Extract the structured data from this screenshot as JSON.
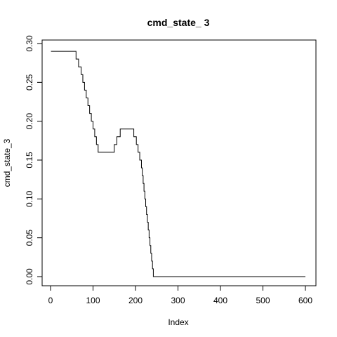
{
  "chart_data": {
    "type": "line",
    "title": "cmd_state_ 3",
    "xlabel": "Index",
    "ylabel": "cmd_state_3",
    "xlim": [
      0,
      600
    ],
    "ylim": [
      0,
      0.3
    ],
    "x_ticks": [
      0,
      100,
      200,
      300,
      400,
      500,
      600
    ],
    "x_tick_labels": [
      "0",
      "100",
      "200",
      "300",
      "400",
      "500",
      "600"
    ],
    "y_ticks": [
      0.0,
      0.05,
      0.1,
      0.15,
      0.2,
      0.25,
      0.3
    ],
    "y_tick_labels": [
      "0.00",
      "0.05",
      "0.10",
      "0.15",
      "0.20",
      "0.25",
      "0.30"
    ],
    "grid": false,
    "series": [
      {
        "step": true,
        "x": [
          1,
          60,
          66,
          72,
          76,
          80,
          84,
          88,
          92,
          96,
          100,
          104,
          108,
          112,
          118,
          124,
          150,
          156,
          164,
          174,
          196,
          202,
          206,
          210,
          214,
          216,
          218,
          220,
          222,
          224,
          226,
          228,
          230,
          232,
          234,
          236,
          238,
          240,
          242,
          244,
          246,
          248,
          250,
          252,
          256,
          260,
          266,
          270,
          282,
          286,
          600
        ],
        "y": [
          0.29,
          0.28,
          0.27,
          0.26,
          0.25,
          0.24,
          0.23,
          0.22,
          0.21,
          0.2,
          0.19,
          0.18,
          0.17,
          0.16,
          0.16,
          0.16,
          0.17,
          0.18,
          0.19,
          0.19,
          0.18,
          0.17,
          0.16,
          0.15,
          0.14,
          0.13,
          0.12,
          0.11,
          0.1,
          0.09,
          0.08,
          0.07,
          0.06,
          0.05,
          0.04,
          0.03,
          0.02,
          0.01,
          0.0,
          0.0,
          0.0,
          0.0,
          0.0,
          0.0,
          0.0,
          0.0,
          0.0,
          0.0,
          0.0,
          0.0,
          0.0
        ]
      }
    ]
  }
}
